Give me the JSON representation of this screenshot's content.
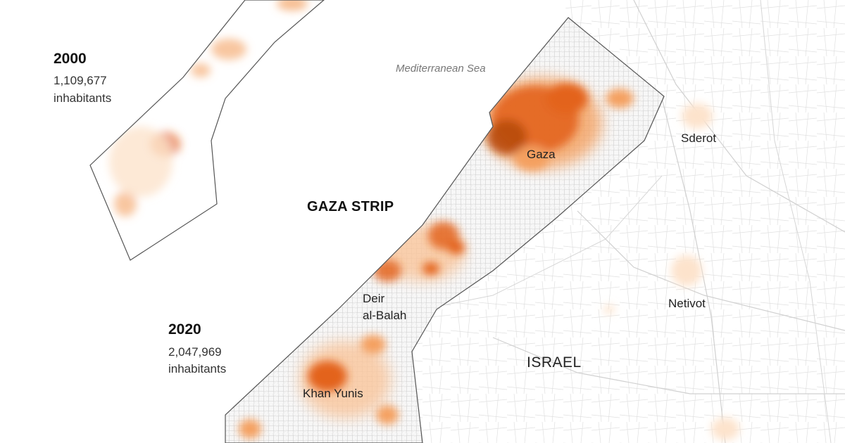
{
  "panels": {
    "y2000": {
      "year": "2000",
      "population": "1,109,677",
      "unit": "inhabitants"
    },
    "y2020": {
      "year": "2020",
      "population": "2,047,969",
      "unit": "inhabitants"
    }
  },
  "labels": {
    "sea": "Mediterranean Sea",
    "region": "GAZA STRIP",
    "country": "ISRAEL",
    "cities": {
      "gaza": "Gaza",
      "deir_line1": "Deir",
      "deir_line2": "al-Balah",
      "khan_yunis": "Khan Yunis",
      "sderot": "Sderot",
      "netivot": "Netivot"
    }
  },
  "colors": {
    "density_low": "#fde3cc",
    "density_mid": "#f4a060",
    "density_high": "#e3641c",
    "density_peak": "#b84a10",
    "outline": "#555555",
    "roads": "#d9d9d9",
    "sea_text": "#777777"
  }
}
